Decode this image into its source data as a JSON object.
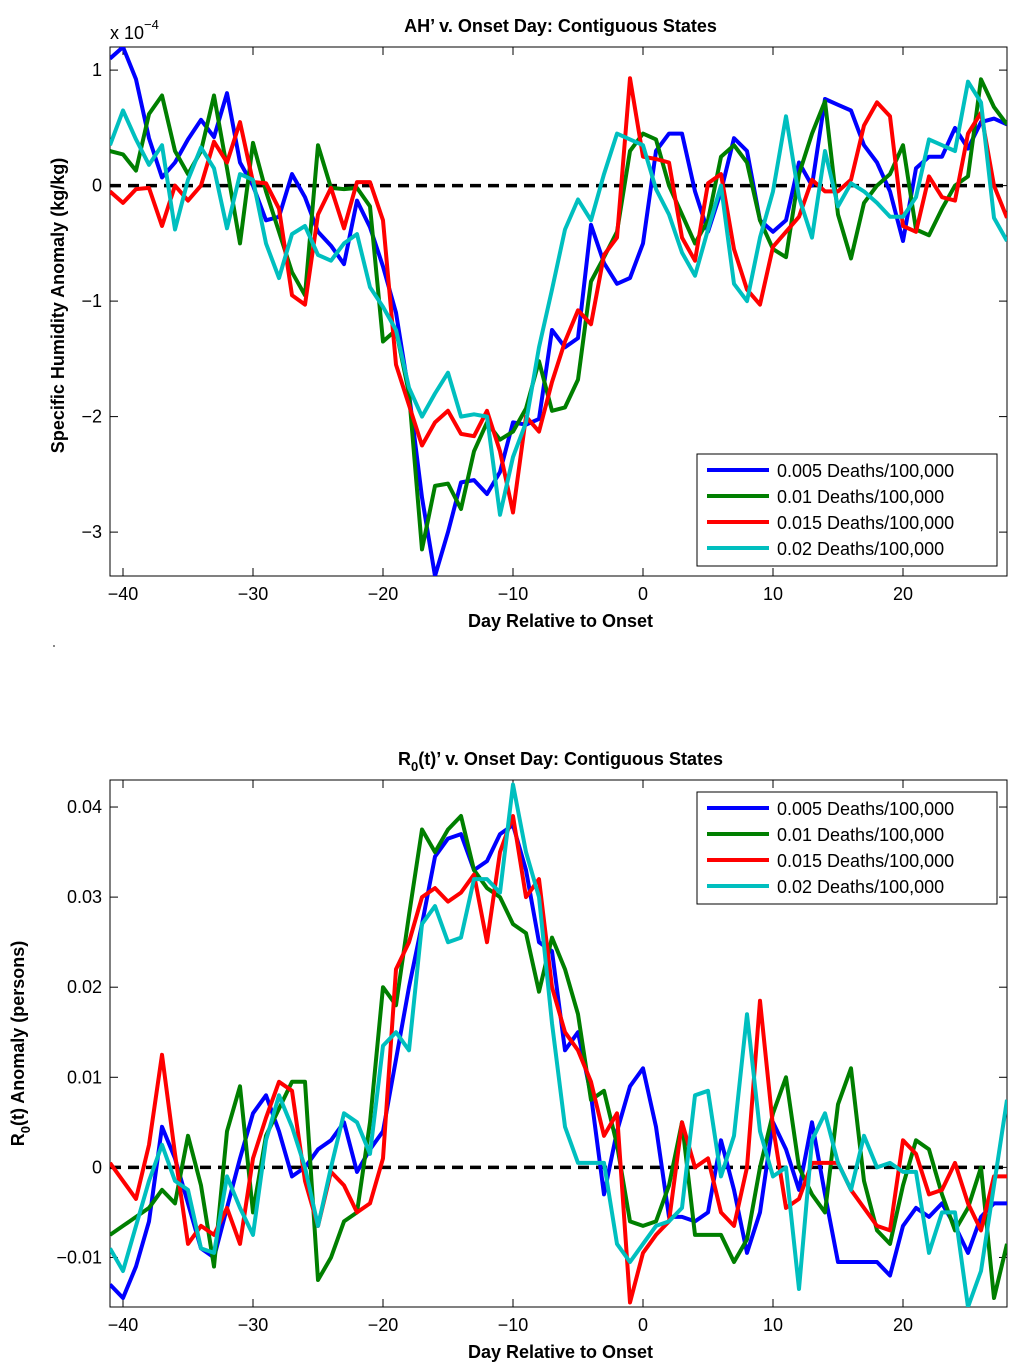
{
  "chart_data": [
    {
      "type": "line",
      "title": "AH’ v. Onset Day: Contiguous States",
      "xlabel": "Day Relative to Onset",
      "ylabel": "Specific Humidity Anomaly (kg/kg)",
      "y_exponent_label": "x 10",
      "y_exponent_power": "−4",
      "xlim": [
        -41,
        28
      ],
      "ylim": [
        -3.38,
        1.2
      ],
      "x_ticks": [
        -40,
        -30,
        -20,
        -10,
        0,
        10,
        20
      ],
      "x_tick_labels": [
        "−40",
        "−30",
        "−20",
        "−10",
        "0",
        "10",
        "20"
      ],
      "y_ticks": [
        -3,
        -2,
        -1,
        0,
        1
      ],
      "y_tick_labels": [
        "−3",
        "−2",
        "−1",
        "0",
        "1"
      ],
      "legend_position": "bottom-right",
      "zero_line": true,
      "x": [
        -41,
        -40,
        -39,
        -38,
        -37,
        -36,
        -35,
        -34,
        -33,
        -32,
        -31,
        -30,
        -29,
        -28,
        -27,
        -26,
        -25,
        -24,
        -23,
        -22,
        -21,
        -20,
        -19,
        -18,
        -17,
        -16,
        -15,
        -14,
        -13,
        -12,
        -11,
        -10,
        -9,
        -8,
        -7,
        -6,
        -5,
        -4,
        -3,
        -2,
        -1,
        0,
        1,
        2,
        3,
        4,
        5,
        6,
        7,
        8,
        9,
        10,
        11,
        12,
        13,
        14,
        15,
        16,
        17,
        18,
        19,
        20,
        21,
        22,
        23,
        24,
        25,
        26,
        27,
        28
      ],
      "series": [
        {
          "name": "0.005 Deaths/100,000",
          "color": "#0000ff",
          "values": [
            1.1,
            1.2,
            0.92,
            0.41,
            0.07,
            0.2,
            0.4,
            0.57,
            0.42,
            0.8,
            0.2,
            0.0,
            -0.3,
            -0.27,
            0.1,
            -0.1,
            -0.4,
            -0.52,
            -0.68,
            -0.13,
            -0.36,
            -0.7,
            -1.1,
            -1.8,
            -2.7,
            -3.38,
            -3.0,
            -2.57,
            -2.55,
            -2.67,
            -2.48,
            -2.05,
            -2.07,
            -2.02,
            -1.25,
            -1.4,
            -1.32,
            -0.34,
            -0.67,
            -0.85,
            -0.8,
            -0.5,
            0.3,
            0.45,
            0.45,
            -0.05,
            -0.4,
            -0.05,
            0.41,
            0.3,
            -0.3,
            -0.4,
            -0.3,
            0.2,
            0.0,
            0.75,
            0.7,
            0.65,
            0.35,
            0.2,
            -0.05,
            -0.48,
            0.15,
            0.25,
            0.25,
            0.5,
            0.32,
            0.55,
            0.58,
            0.53
          ]
        },
        {
          "name": "0.01 Deaths/100,000",
          "color": "#007f00",
          "values": [
            0.3,
            0.27,
            0.13,
            0.62,
            0.78,
            0.3,
            0.1,
            0.3,
            0.78,
            0.15,
            -0.5,
            0.37,
            -0.05,
            -0.4,
            -0.75,
            -0.95,
            0.35,
            -0.02,
            -0.03,
            -0.02,
            -0.18,
            -1.35,
            -1.25,
            -1.8,
            -3.15,
            -2.6,
            -2.58,
            -2.8,
            -2.3,
            -2.05,
            -2.2,
            -2.13,
            -1.93,
            -1.52,
            -1.95,
            -1.92,
            -1.68,
            -0.83,
            -0.62,
            -0.4,
            0.3,
            0.45,
            0.4,
            0.0,
            -0.25,
            -0.5,
            -0.3,
            0.25,
            0.35,
            0.2,
            -0.3,
            -0.55,
            -0.62,
            0.1,
            0.45,
            0.73,
            -0.25,
            -0.63,
            -0.15,
            0.0,
            0.1,
            0.35,
            -0.38,
            -0.43,
            -0.2,
            0.0,
            0.08,
            0.92,
            0.68,
            0.53
          ]
        },
        {
          "name": "0.015 Deaths/100,000",
          "color": "#ff0000",
          "values": [
            -0.05,
            -0.15,
            -0.03,
            -0.02,
            -0.35,
            0.0,
            -0.13,
            0.0,
            0.38,
            0.2,
            0.55,
            0.03,
            0.02,
            -0.2,
            -0.95,
            -1.03,
            -0.25,
            -0.02,
            -0.37,
            0.03,
            0.03,
            -0.3,
            -1.55,
            -1.9,
            -2.25,
            -2.05,
            -1.95,
            -2.15,
            -2.17,
            -1.95,
            -2.3,
            -2.83,
            -2.0,
            -2.13,
            -1.7,
            -1.35,
            -1.08,
            -1.2,
            -0.6,
            -0.45,
            0.93,
            0.25,
            0.23,
            0.2,
            -0.45,
            -0.65,
            0.02,
            0.1,
            -0.55,
            -0.9,
            -1.03,
            -0.53,
            -0.4,
            -0.27,
            0.05,
            -0.05,
            -0.05,
            0.05,
            0.52,
            0.72,
            0.6,
            -0.35,
            -0.4,
            0.08,
            -0.1,
            -0.13,
            0.45,
            0.63,
            0.0,
            -0.28
          ]
        },
        {
          "name": "0.02 Deaths/100,000",
          "color": "#00bfbf",
          "values": [
            0.35,
            0.65,
            0.4,
            0.18,
            0.35,
            -0.38,
            0.05,
            0.33,
            0.15,
            -0.37,
            0.1,
            0.05,
            -0.5,
            -0.8,
            -0.42,
            -0.35,
            -0.6,
            -0.65,
            -0.5,
            -0.42,
            -0.88,
            -1.05,
            -1.25,
            -1.75,
            -2.0,
            -1.8,
            -1.62,
            -2.0,
            -1.98,
            -2.0,
            -2.85,
            -2.35,
            -2.05,
            -1.4,
            -0.9,
            -0.38,
            -0.12,
            -0.3,
            0.1,
            0.45,
            0.4,
            0.35,
            -0.03,
            -0.25,
            -0.58,
            -0.78,
            -0.38,
            0.0,
            -0.85,
            -1.0,
            -0.45,
            -0.05,
            0.6,
            -0.1,
            -0.45,
            0.3,
            -0.18,
            0.02,
            -0.05,
            -0.15,
            -0.27,
            -0.27,
            -0.1,
            0.4,
            0.35,
            0.3,
            0.9,
            0.72,
            -0.28,
            -0.48
          ]
        }
      ]
    },
    {
      "type": "line",
      "title_main": "R",
      "title_sub": "0",
      "title_rest": "(t)’ v. Onset Day: Contiguous States",
      "xlabel": "Day Relative to Onset",
      "ylabel_main": "R",
      "ylabel_sub": "0",
      "ylabel_rest": "(t) Anomaly (persons)",
      "xlim": [
        -41,
        28
      ],
      "ylim": [
        -0.0155,
        0.043
      ],
      "x_ticks": [
        -40,
        -30,
        -20,
        -10,
        0,
        10,
        20
      ],
      "x_tick_labels": [
        "−40",
        "−30",
        "−20",
        "−10",
        "0",
        "10",
        "20"
      ],
      "y_ticks": [
        -0.01,
        0,
        0.01,
        0.02,
        0.03,
        0.04
      ],
      "y_tick_labels": [
        "−0.01",
        "0",
        "0.01",
        "0.02",
        "0.03",
        "0.04"
      ],
      "legend_position": "top-right",
      "zero_line": true,
      "x": [
        -41,
        -40,
        -39,
        -38,
        -37,
        -36,
        -35,
        -34,
        -33,
        -32,
        -31,
        -30,
        -29,
        -28,
        -27,
        -26,
        -25,
        -24,
        -23,
        -22,
        -21,
        -20,
        -19,
        -18,
        -17,
        -16,
        -15,
        -14,
        -13,
        -12,
        -11,
        -10,
        -9,
        -8,
        -7,
        -6,
        -5,
        -4,
        -3,
        -2,
        -1,
        0,
        1,
        2,
        3,
        4,
        5,
        6,
        7,
        8,
        9,
        10,
        11,
        12,
        13,
        14,
        15,
        16,
        17,
        18,
        19,
        20,
        21,
        22,
        23,
        24,
        25,
        26,
        27,
        28
      ],
      "series": [
        {
          "name": "0.005 Deaths/100,000",
          "color": "#0000ff",
          "values": [
            -0.013,
            -0.0145,
            -0.011,
            -0.006,
            0.0045,
            0.001,
            -0.004,
            -0.009,
            -0.01,
            -0.0045,
            0.001,
            0.006,
            0.008,
            0.004,
            -0.001,
            0.0,
            0.002,
            0.003,
            0.005,
            -0.0005,
            0.002,
            0.004,
            0.012,
            0.02,
            0.027,
            0.0345,
            0.0365,
            0.037,
            0.033,
            0.034,
            0.037,
            0.038,
            0.033,
            0.025,
            0.024,
            0.013,
            0.015,
            0.008,
            -0.003,
            0.004,
            0.009,
            0.011,
            0.0045,
            -0.0055,
            -0.0055,
            -0.006,
            -0.005,
            0.003,
            -0.0025,
            -0.0095,
            -0.005,
            0.005,
            0.002,
            -0.0025,
            0.005,
            -0.003,
            -0.0105,
            -0.0105,
            -0.0105,
            -0.0105,
            -0.012,
            -0.0065,
            -0.0045,
            -0.0055,
            -0.004,
            -0.0065,
            -0.0095,
            -0.0055,
            -0.004,
            -0.004
          ]
        },
        {
          "name": "0.01 Deaths/100,000",
          "color": "#007f00",
          "values": [
            -0.0075,
            -0.0065,
            -0.0055,
            -0.0045,
            -0.0025,
            -0.004,
            0.0035,
            -0.002,
            -0.011,
            0.004,
            0.009,
            -0.005,
            0.0035,
            0.0065,
            0.0095,
            0.0095,
            -0.0125,
            -0.01,
            -0.006,
            -0.005,
            0.005,
            0.02,
            0.018,
            0.028,
            0.0375,
            0.035,
            0.0375,
            0.039,
            0.033,
            0.031,
            0.03,
            0.027,
            0.026,
            0.0195,
            0.0255,
            0.022,
            0.017,
            0.0075,
            0.0085,
            0.0025,
            -0.006,
            -0.0065,
            -0.006,
            -0.002,
            0.005,
            -0.0075,
            -0.0075,
            -0.0075,
            -0.0105,
            -0.008,
            0.0,
            0.006,
            0.01,
            0.0,
            -0.003,
            -0.005,
            0.007,
            0.011,
            -0.0015,
            -0.007,
            -0.0085,
            -0.002,
            0.003,
            0.002,
            -0.003,
            -0.007,
            -0.0045,
            0.0,
            -0.0145,
            -0.0085
          ]
        },
        {
          "name": "0.015 Deaths/100,000",
          "color": "#ff0000",
          "values": [
            0.0005,
            -0.0015,
            -0.0035,
            0.0025,
            0.0125,
            0.0015,
            -0.0085,
            -0.0065,
            -0.0075,
            -0.0045,
            -0.0085,
            0.001,
            0.0055,
            0.0095,
            0.0085,
            -0.0015,
            -0.0065,
            -0.0005,
            -0.002,
            -0.005,
            -0.004,
            0.001,
            0.022,
            0.025,
            0.03,
            0.031,
            0.0295,
            0.0305,
            0.0325,
            0.025,
            0.035,
            0.039,
            0.03,
            0.032,
            0.02,
            0.015,
            0.013,
            0.0095,
            0.0035,
            0.006,
            -0.015,
            -0.0095,
            -0.0075,
            -0.006,
            0.005,
            0.0,
            0.001,
            -0.005,
            -0.0065,
            0.0,
            0.0185,
            0.0045,
            -0.0045,
            -0.0035,
            0.0005,
            0.0005,
            0.0005,
            -0.0025,
            -0.0045,
            -0.0065,
            -0.007,
            0.003,
            0.0015,
            -0.003,
            -0.0025,
            0.0005,
            -0.004,
            -0.007,
            -0.001,
            -0.001
          ]
        },
        {
          "name": "0.02 Deaths/100,000",
          "color": "#00bfbf",
          "values": [
            -0.009,
            -0.0115,
            -0.0065,
            -0.0015,
            0.0025,
            -0.0015,
            -0.0025,
            -0.009,
            -0.0095,
            -0.001,
            -0.0045,
            -0.0075,
            0.003,
            0.008,
            0.0045,
            0.0,
            -0.0065,
            0.0,
            0.006,
            0.005,
            0.0015,
            0.0135,
            0.015,
            0.013,
            0.027,
            0.029,
            0.025,
            0.0255,
            0.032,
            0.032,
            0.0305,
            0.0425,
            0.035,
            0.03,
            0.016,
            0.0045,
            0.0005,
            0.0005,
            0.0005,
            -0.0085,
            -0.0105,
            -0.0085,
            -0.0065,
            -0.006,
            -0.0045,
            0.008,
            0.0085,
            -0.001,
            0.0035,
            0.017,
            0.004,
            -0.001,
            0.0,
            -0.0135,
            0.003,
            0.006,
            0.0005,
            -0.0025,
            0.0035,
            0.0,
            0.0005,
            -0.0005,
            -0.0005,
            -0.0095,
            -0.005,
            -0.005,
            -0.0155,
            -0.0115,
            -0.002,
            0.0075
          ]
        }
      ]
    }
  ]
}
